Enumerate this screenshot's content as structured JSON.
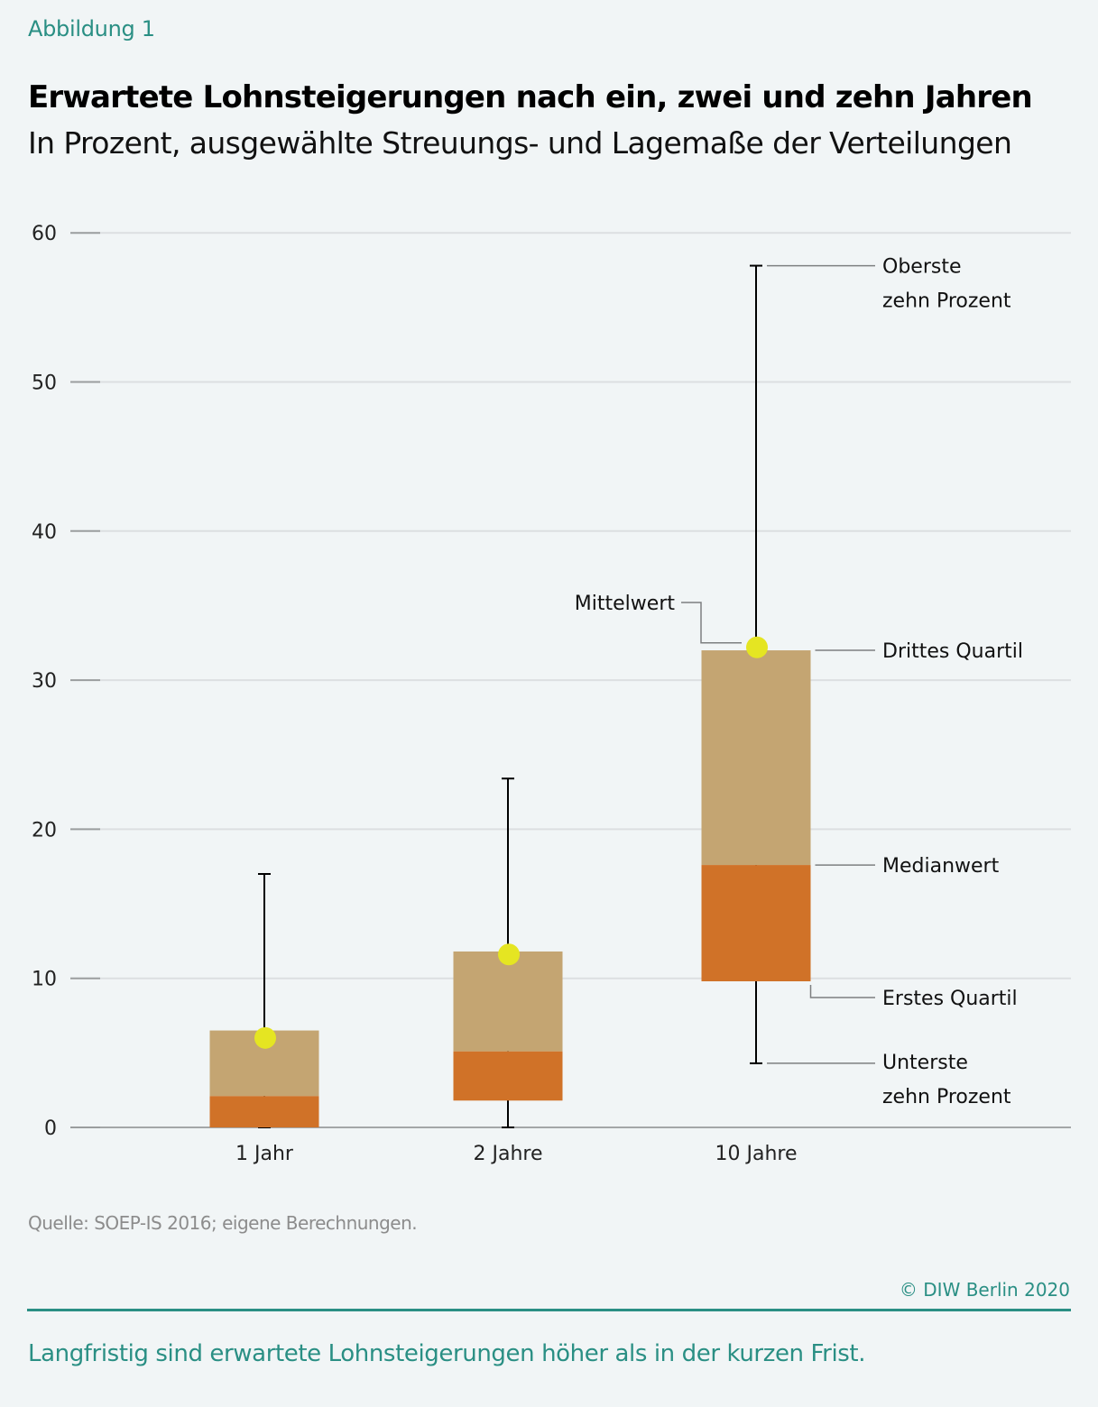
{
  "header": {
    "kicker": "Abbildung 1",
    "title": "Erwartete Lohnsteigerungen nach ein, zwei und zehn Jahren",
    "subtitle": "In Prozent, ausgewählte Streuungs- und Lagemaße der Verteilungen"
  },
  "colors": {
    "upper_box": "#c4a572",
    "lower_box": "#d07228",
    "mean_dot": "#e5e522",
    "whisker": "#000000",
    "grid": "#dcdfe1",
    "accent": "#2a8f84",
    "background": "#f1f5f6"
  },
  "chart_data": {
    "type": "boxplot",
    "title": "Erwartete Lohnsteigerungen nach ein, zwei und zehn Jahren",
    "subtitle": "In Prozent, ausgewählte Streuungs- und Lagemaße der Verteilungen",
    "xlabel": "",
    "ylabel": "",
    "ylim": [
      0,
      60
    ],
    "yticks": [
      0,
      10,
      20,
      30,
      40,
      50,
      60
    ],
    "grid": true,
    "categories": [
      "1 Jahr",
      "2 Jahre",
      "10 Jahre"
    ],
    "series": [
      {
        "name": "Unterste zehn Prozent",
        "values": [
          0,
          0,
          4.3
        ]
      },
      {
        "name": "Erstes Quartil",
        "values": [
          0,
          1.8,
          9.8
        ]
      },
      {
        "name": "Medianwert",
        "values": [
          2.1,
          5.1,
          17.6
        ]
      },
      {
        "name": "Drittes Quartil",
        "values": [
          6.5,
          11.8,
          32.0
        ]
      },
      {
        "name": "Oberste zehn Prozent",
        "values": [
          17.0,
          23.4,
          57.8
        ]
      },
      {
        "name": "Mittelwert",
        "values": [
          6.0,
          11.6,
          32.2
        ]
      }
    ],
    "annotations": [
      {
        "text": [
          "Oberste",
          "zehn Prozent"
        ],
        "target": "p90",
        "category": "10 Jahre"
      },
      {
        "text": [
          "Mittelwert"
        ],
        "target": "mean",
        "category": "10 Jahre"
      },
      {
        "text": [
          "Drittes Quartil"
        ],
        "target": "q3",
        "category": "10 Jahre"
      },
      {
        "text": [
          "Medianwert"
        ],
        "target": "median",
        "category": "10 Jahre"
      },
      {
        "text": [
          "Erstes Quartil"
        ],
        "target": "q1",
        "category": "10 Jahre"
      },
      {
        "text": [
          "Unterste",
          "zehn Prozent"
        ],
        "target": "p10",
        "category": "10 Jahre"
      }
    ]
  },
  "footer": {
    "source": "Quelle: SOEP-IS 2016; eigene Berechnungen.",
    "copyright": "© DIW Berlin 2020",
    "caption": "Langfristig sind erwartete Lohnsteigerungen höher als in der kurzen Frist."
  }
}
